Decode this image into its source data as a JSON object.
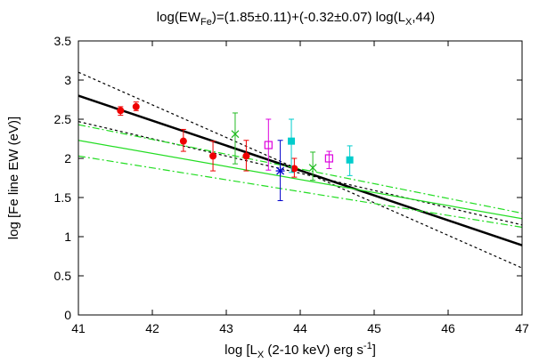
{
  "chart_data": {
    "type": "scatter",
    "title": "log(EW_Fe)=(1.85±0.11)+(-0.32±0.07) log(L_X,44)",
    "xlabel": "log [L_X (2-10 keV) erg s^-1]",
    "ylabel": "log [Fe line EW (eV)]",
    "xlim": [
      41,
      47
    ],
    "ylim": [
      0,
      3.5
    ],
    "xticks": [
      "41",
      "42",
      "43",
      "44",
      "45",
      "46",
      "47"
    ],
    "yticks": [
      "0",
      "0.5",
      "1",
      "1.5",
      "2",
      "2.5",
      "3",
      "3.5"
    ],
    "grid": false,
    "lines": [
      {
        "style": "solid",
        "color": "#000000",
        "points": [
          [
            41,
            2.8
          ],
          [
            47,
            0.89
          ]
        ]
      },
      {
        "style": "dashed",
        "color": "#000000",
        "points": [
          [
            41,
            3.1
          ],
          [
            47,
            0.6
          ]
        ]
      },
      {
        "style": "dashed",
        "color": "#000000",
        "points": [
          [
            41,
            2.47
          ],
          [
            47,
            1.15
          ]
        ]
      },
      {
        "style": "solid",
        "color": "#22dd22",
        "points": [
          [
            41,
            2.23
          ],
          [
            47,
            1.23
          ]
        ]
      },
      {
        "style": "dashdot",
        "color": "#22dd22",
        "points": [
          [
            41,
            2.43
          ],
          [
            47,
            1.3
          ]
        ]
      },
      {
        "style": "dashdot",
        "color": "#22dd22",
        "points": [
          [
            41,
            2.03
          ],
          [
            47,
            1.12
          ]
        ]
      }
    ],
    "series": [
      {
        "marker": "filled-circle",
        "color": "#ee0000",
        "points": [
          {
            "x": 41.57,
            "y": 2.61,
            "lo": 2.55,
            "hi": 2.66
          },
          {
            "x": 41.78,
            "y": 2.66,
            "lo": 2.61,
            "hi": 2.72
          },
          {
            "x": 42.42,
            "y": 2.22,
            "lo": 2.09,
            "hi": 2.37
          },
          {
            "x": 42.82,
            "y": 2.03,
            "lo": 1.84,
            "hi": 2.22
          },
          {
            "x": 43.27,
            "y": 2.03,
            "lo": 1.84,
            "hi": 2.23
          },
          {
            "x": 43.92,
            "y": 1.87,
            "lo": 1.76,
            "hi": 2.0
          }
        ]
      },
      {
        "marker": "cross",
        "color": "#22bb22",
        "points": [
          {
            "x": 43.12,
            "y": 2.31,
            "lo": 1.93,
            "hi": 2.58
          },
          {
            "x": 44.17,
            "y": 1.88,
            "lo": 1.72,
            "hi": 2.08
          }
        ]
      },
      {
        "marker": "open-square",
        "color": "#dd00dd",
        "points": [
          {
            "x": 43.57,
            "y": 2.17,
            "lo": 1.85,
            "hi": 2.5
          },
          {
            "x": 44.39,
            "y": 2.0,
            "lo": 1.87,
            "hi": 2.09
          }
        ]
      },
      {
        "marker": "asterisk",
        "color": "#0000cc",
        "points": [
          {
            "x": 43.73,
            "y": 1.84,
            "lo": 1.46,
            "hi": 2.23
          }
        ]
      },
      {
        "marker": "filled-square",
        "color": "#00cccc",
        "points": [
          {
            "x": 43.88,
            "y": 2.22,
            "lo": 1.82,
            "hi": 2.5
          },
          {
            "x": 44.67,
            "y": 1.98,
            "lo": 1.78,
            "hi": 2.16
          }
        ]
      }
    ]
  }
}
